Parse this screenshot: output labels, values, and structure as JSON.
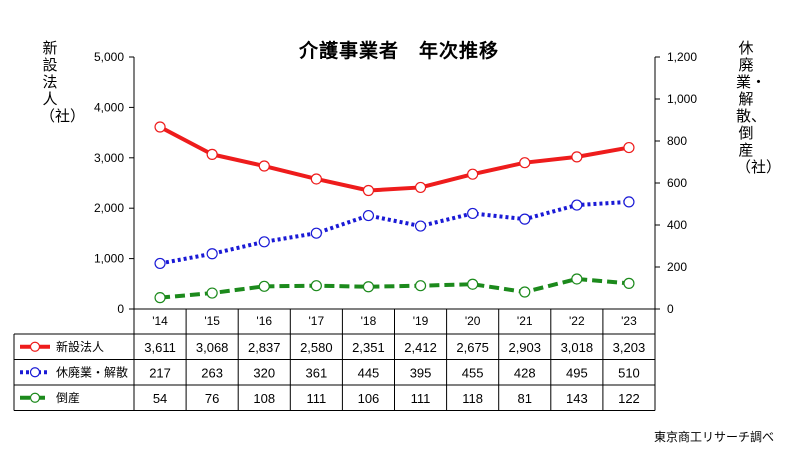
{
  "chart_data": {
    "type": "line",
    "title": "介護事業者　年次推移",
    "ylabel_left": "新設法人（社）",
    "ylabel_right": "休廃業・解散、倒産（社）",
    "categories": [
      "'14",
      "'15",
      "'16",
      "'17",
      "'18",
      "'19",
      "'20",
      "'21",
      "'22",
      "'23"
    ],
    "y_left": {
      "min": 0,
      "max": 5000,
      "step": 1000,
      "ticks": [
        "0",
        "1,000",
        "2,000",
        "3,000",
        "4,000",
        "5,000"
      ]
    },
    "y_right": {
      "min": 0,
      "max": 1200,
      "step": 200,
      "ticks": [
        "0",
        "200",
        "400",
        "600",
        "800",
        "1,000",
        "1,200"
      ]
    },
    "series": [
      {
        "name": "新設法人",
        "axis": "left",
        "color": "#ee1c1c",
        "style": "solid",
        "values": [
          3611,
          3068,
          2837,
          2580,
          2351,
          2412,
          2675,
          2903,
          3018,
          3203
        ],
        "labels": [
          "3,611",
          "3,068",
          "2,837",
          "2,580",
          "2,351",
          "2,412",
          "2,675",
          "2,903",
          "3,018",
          "3,203"
        ]
      },
      {
        "name": "休廃業・解散",
        "axis": "right",
        "color": "#1a1ad6",
        "style": "dotted",
        "values": [
          217,
          263,
          320,
          361,
          445,
          395,
          455,
          428,
          495,
          510
        ],
        "labels": [
          "217",
          "263",
          "320",
          "361",
          "445",
          "395",
          "455",
          "428",
          "495",
          "510"
        ]
      },
      {
        "name": "倒産",
        "axis": "right",
        "color": "#1c8a1c",
        "style": "dashed",
        "values": [
          54,
          76,
          108,
          111,
          106,
          111,
          118,
          81,
          143,
          122
        ],
        "labels": [
          "54",
          "76",
          "108",
          "111",
          "106",
          "111",
          "118",
          "81",
          "143",
          "122"
        ]
      }
    ],
    "grid": false,
    "legend": "table-left"
  },
  "source": "東京商工リサーチ調べ"
}
